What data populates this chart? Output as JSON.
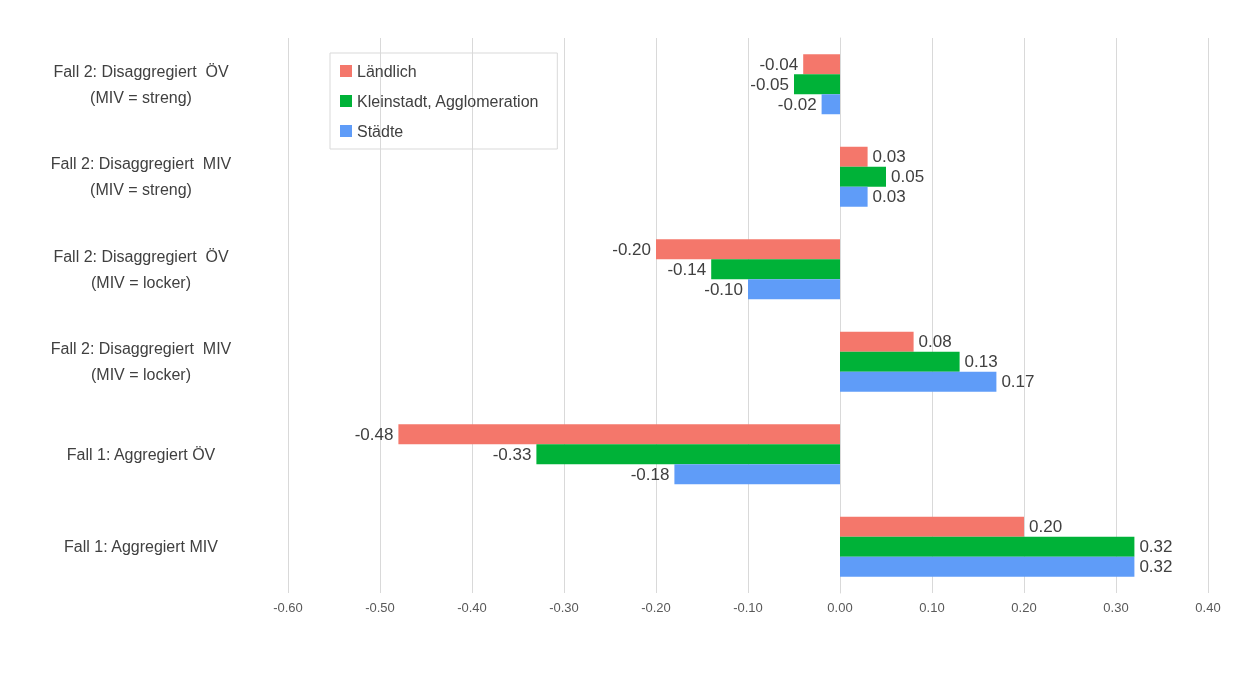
{
  "chart_data": {
    "type": "bar",
    "orientation": "horizontal",
    "categories": [
      "Fall 2: Disaggregiert  ÖV\n(MIV = streng)",
      "Fall 2: Disaggregiert  MIV\n(MIV = streng)",
      "Fall 2: Disaggregiert  ÖV\n(MIV = locker)",
      "Fall 2: Disaggregiert  MIV\n(MIV = locker)",
      "Fall 1: Aggregiert ÖV",
      "Fall 1: Aggregiert MIV"
    ],
    "series": [
      {
        "name": "Ländlich",
        "color": "#f4776b",
        "values": [
          -0.04,
          0.03,
          -0.2,
          0.08,
          -0.48,
          0.2
        ],
        "value_labels": [
          "-0.04",
          "0.03",
          "-0.20",
          "0.08",
          "-0.48",
          "0.20"
        ]
      },
      {
        "name": "Kleinstadt, Agglomeration",
        "color": "#00b238",
        "values": [
          -0.05,
          0.05,
          -0.14,
          0.13,
          -0.33,
          0.32
        ],
        "value_labels": [
          "-0.05",
          "0.05",
          "-0.14",
          "0.13",
          "-0.33",
          "0.32"
        ]
      },
      {
        "name": "Städte",
        "color": "#5f9cf8",
        "values": [
          -0.02,
          0.03,
          -0.1,
          0.17,
          -0.18,
          0.32
        ],
        "value_labels": [
          "-0.02",
          "0.03",
          "-0.10",
          "0.17",
          "-0.18",
          "0.32"
        ]
      }
    ],
    "xlim": [
      -0.6,
      0.4
    ],
    "xticks": [
      {
        "value": -0.6,
        "label": "-0.60"
      },
      {
        "value": -0.5,
        "label": "-0.50"
      },
      {
        "value": -0.4,
        "label": "-0.40"
      },
      {
        "value": -0.3,
        "label": "-0.30"
      },
      {
        "value": -0.2,
        "label": "-0.20"
      },
      {
        "value": -0.1,
        "label": "-0.10"
      },
      {
        "value": 0,
        "label": "0.00"
      },
      {
        "value": 0.1,
        "label": "0.10"
      },
      {
        "value": 0.2,
        "label": "0.20"
      },
      {
        "value": 0.3,
        "label": "0.30"
      },
      {
        "value": 0.4,
        "label": "0.40"
      }
    ],
    "grid": "x",
    "legend": "top left"
  }
}
